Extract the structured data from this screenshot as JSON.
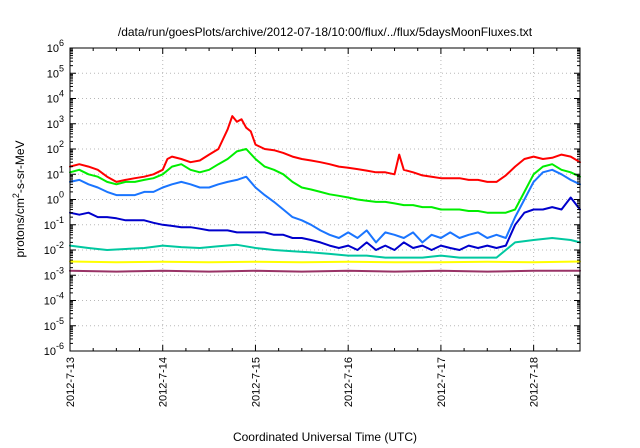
{
  "chart_data": {
    "type": "line",
    "title": "/data/run/goesPlots/archive/2012-07-18/10:00/flux/../flux/5daysMoonFluxes.txt",
    "xlabel": "Coordinated Universal Time (UTC)",
    "ylabel_parts": {
      "before": "protons/cm",
      "sup": "2",
      "after": "-s-sr-MeV"
    },
    "y_scale": "log",
    "ylim": [
      1e-06,
      1000000.0
    ],
    "xlim": [
      0,
      5.5
    ],
    "x_unit": "days since 2012-7-13",
    "grid": true,
    "x_tick_labels": [
      "2012-7-13",
      "2012-7-14",
      "2012-7-15",
      "2012-7-16",
      "2012-7-17",
      "2012-7-18"
    ],
    "x_tick_values": [
      0,
      1,
      2,
      3,
      4,
      5
    ],
    "y_tick_labels": [
      {
        "base": "10",
        "exp": "-6",
        "value": -6
      },
      {
        "base": "10",
        "exp": "-5",
        "value": -5
      },
      {
        "base": "10",
        "exp": "-4",
        "value": -4
      },
      {
        "base": "10",
        "exp": "-3",
        "value": -3
      },
      {
        "base": "10",
        "exp": "-2",
        "value": -2
      },
      {
        "base": "10",
        "exp": "-1",
        "value": -1
      },
      {
        "base": "10",
        "exp": "0",
        "value": 0
      },
      {
        "base": "10",
        "exp": "1",
        "value": 1
      },
      {
        "base": "10",
        "exp": "2",
        "value": 2
      },
      {
        "base": "10",
        "exp": "3",
        "value": 3
      },
      {
        "base": "10",
        "exp": "4",
        "value": 4
      },
      {
        "base": "10",
        "exp": "5",
        "value": 5
      },
      {
        "base": "10",
        "exp": "6",
        "value": 6
      }
    ],
    "series": [
      {
        "color": "#ff0000",
        "x": [
          0,
          0.1,
          0.2,
          0.3,
          0.4,
          0.5,
          0.6,
          0.7,
          0.8,
          0.9,
          1.0,
          1.05,
          1.1,
          1.2,
          1.3,
          1.4,
          1.5,
          1.6,
          1.7,
          1.75,
          1.8,
          1.85,
          1.9,
          1.95,
          2.0,
          2.1,
          2.2,
          2.3,
          2.4,
          2.5,
          2.6,
          2.7,
          2.8,
          2.9,
          3.0,
          3.1,
          3.2,
          3.3,
          3.4,
          3.5,
          3.55,
          3.6,
          3.7,
          3.8,
          3.9,
          4.0,
          4.1,
          4.2,
          4.3,
          4.4,
          4.5,
          4.6,
          4.7,
          4.8,
          4.9,
          5.0,
          5.1,
          5.2,
          5.3,
          5.4,
          5.5
        ],
        "y": [
          20,
          25,
          20,
          15,
          8,
          5,
          6,
          7,
          8,
          10,
          15,
          40,
          50,
          40,
          30,
          35,
          60,
          100,
          600,
          2000,
          1200,
          1500,
          700,
          500,
          150,
          100,
          90,
          70,
          50,
          40,
          35,
          30,
          25,
          20,
          18,
          16,
          14,
          12,
          12,
          10,
          60,
          15,
          12,
          9,
          8,
          7,
          7,
          7,
          6,
          6,
          5,
          5,
          9,
          20,
          40,
          50,
          40,
          45,
          60,
          50,
          30
        ]
      },
      {
        "color": "#00ee00",
        "x": [
          0,
          0.1,
          0.2,
          0.3,
          0.4,
          0.5,
          0.6,
          0.7,
          0.8,
          0.9,
          1.0,
          1.1,
          1.2,
          1.3,
          1.4,
          1.5,
          1.6,
          1.7,
          1.8,
          1.9,
          2.0,
          2.1,
          2.2,
          2.3,
          2.4,
          2.5,
          2.6,
          2.7,
          2.8,
          2.9,
          3.0,
          3.1,
          3.2,
          3.3,
          3.4,
          3.5,
          3.6,
          3.7,
          3.8,
          3.9,
          4.0,
          4.1,
          4.2,
          4.3,
          4.4,
          4.5,
          4.6,
          4.7,
          4.8,
          4.9,
          5.0,
          5.1,
          5.2,
          5.3,
          5.4,
          5.5
        ],
        "y": [
          12,
          15,
          10,
          8,
          5,
          4,
          5,
          5,
          6,
          7,
          10,
          20,
          25,
          15,
          12,
          15,
          25,
          40,
          80,
          100,
          40,
          20,
          15,
          10,
          5,
          3,
          2.5,
          2,
          1.6,
          1.4,
          1.2,
          1.0,
          0.9,
          0.8,
          0.8,
          0.7,
          0.6,
          0.6,
          0.5,
          0.5,
          0.4,
          0.4,
          0.4,
          0.35,
          0.35,
          0.3,
          0.3,
          0.3,
          0.4,
          2,
          10,
          20,
          25,
          15,
          12,
          8
        ]
      },
      {
        "color": "#1a75ff",
        "x": [
          0,
          0.1,
          0.2,
          0.3,
          0.4,
          0.5,
          0.6,
          0.7,
          0.8,
          0.9,
          1.0,
          1.1,
          1.2,
          1.3,
          1.4,
          1.5,
          1.6,
          1.7,
          1.8,
          1.9,
          2.0,
          2.1,
          2.2,
          2.3,
          2.4,
          2.5,
          2.6,
          2.7,
          2.8,
          2.9,
          3.0,
          3.1,
          3.2,
          3.3,
          3.4,
          3.5,
          3.6,
          3.7,
          3.8,
          3.9,
          4.0,
          4.1,
          4.2,
          4.3,
          4.4,
          4.5,
          4.6,
          4.7,
          4.8,
          4.9,
          5.0,
          5.1,
          5.2,
          5.3,
          5.4,
          5.5
        ],
        "y": [
          5,
          6,
          4,
          3,
          2,
          1.5,
          1.5,
          1.5,
          2,
          2,
          3,
          4,
          5,
          4,
          3,
          3,
          4,
          5,
          6,
          8,
          3,
          1.5,
          0.8,
          0.4,
          0.2,
          0.15,
          0.1,
          0.06,
          0.04,
          0.03,
          0.05,
          0.03,
          0.06,
          0.02,
          0.05,
          0.04,
          0.03,
          0.05,
          0.02,
          0.04,
          0.03,
          0.05,
          0.03,
          0.04,
          0.05,
          0.03,
          0.04,
          0.03,
          0.2,
          1,
          5,
          12,
          15,
          10,
          6,
          4
        ]
      },
      {
        "color": "#0000cc",
        "x": [
          0,
          0.1,
          0.2,
          0.3,
          0.4,
          0.5,
          0.6,
          0.7,
          0.8,
          0.9,
          1.0,
          1.1,
          1.2,
          1.3,
          1.4,
          1.5,
          1.6,
          1.7,
          1.8,
          1.9,
          2.0,
          2.1,
          2.2,
          2.3,
          2.4,
          2.5,
          2.6,
          2.7,
          2.8,
          2.9,
          3.0,
          3.1,
          3.2,
          3.3,
          3.4,
          3.5,
          3.6,
          3.7,
          3.8,
          3.9,
          4.0,
          4.1,
          4.2,
          4.3,
          4.4,
          4.5,
          4.6,
          4.7,
          4.8,
          4.9,
          5.0,
          5.1,
          5.2,
          5.3,
          5.4,
          5.5
        ],
        "y": [
          0.3,
          0.25,
          0.3,
          0.2,
          0.2,
          0.18,
          0.15,
          0.15,
          0.15,
          0.12,
          0.1,
          0.09,
          0.08,
          0.08,
          0.07,
          0.06,
          0.06,
          0.06,
          0.05,
          0.05,
          0.05,
          0.05,
          0.04,
          0.04,
          0.03,
          0.03,
          0.025,
          0.02,
          0.015,
          0.012,
          0.015,
          0.01,
          0.02,
          0.01,
          0.015,
          0.01,
          0.02,
          0.012,
          0.015,
          0.01,
          0.015,
          0.012,
          0.01,
          0.015,
          0.012,
          0.015,
          0.012,
          0.015,
          0.1,
          0.3,
          0.4,
          0.4,
          0.5,
          0.4,
          1.2,
          0.4
        ]
      },
      {
        "color": "#00c8a0",
        "x": [
          0,
          0.2,
          0.4,
          0.6,
          0.8,
          1.0,
          1.2,
          1.4,
          1.6,
          1.8,
          2.0,
          2.2,
          2.4,
          2.6,
          2.8,
          3.0,
          3.2,
          3.4,
          3.6,
          3.8,
          4.0,
          4.2,
          4.4,
          4.6,
          4.8,
          5.0,
          5.2,
          5.4,
          5.5
        ],
        "y": [
          0.015,
          0.012,
          0.01,
          0.011,
          0.012,
          0.015,
          0.013,
          0.012,
          0.014,
          0.016,
          0.012,
          0.01,
          0.009,
          0.008,
          0.007,
          0.006,
          0.006,
          0.005,
          0.005,
          0.005,
          0.006,
          0.005,
          0.005,
          0.005,
          0.02,
          0.025,
          0.03,
          0.025,
          0.02
        ]
      },
      {
        "color": "#ffff00",
        "x": [
          0,
          0.5,
          1.0,
          1.5,
          2.0,
          2.5,
          3.0,
          3.5,
          4.0,
          4.5,
          5.0,
          5.5
        ],
        "y": [
          0.0035,
          0.0033,
          0.0034,
          0.0033,
          0.0034,
          0.0033,
          0.0034,
          0.0033,
          0.0033,
          0.0034,
          0.0033,
          0.0035
        ]
      },
      {
        "color": "#993366",
        "x": [
          0,
          0.5,
          1.0,
          1.5,
          2.0,
          2.5,
          3.0,
          3.5,
          4.0,
          4.5,
          5.0,
          5.5
        ],
        "y": [
          0.0015,
          0.0014,
          0.0015,
          0.0014,
          0.0015,
          0.0014,
          0.0015,
          0.0014,
          0.0015,
          0.0014,
          0.0015,
          0.0015
        ]
      }
    ]
  }
}
